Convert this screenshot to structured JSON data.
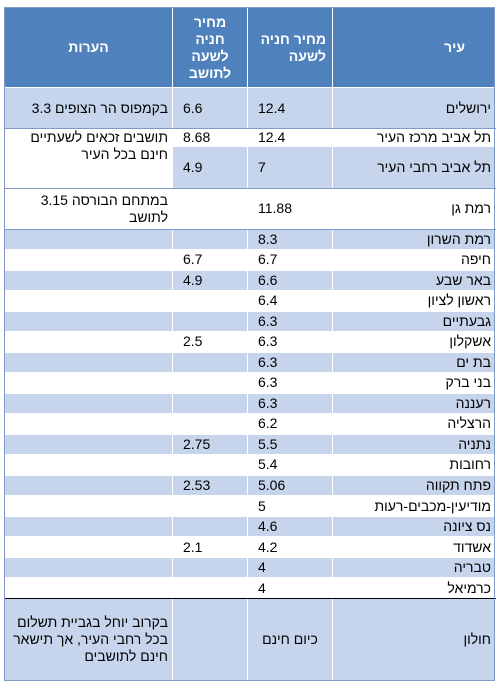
{
  "headers": {
    "city": "עיר",
    "price": "מחיר חניה לשעה",
    "resident": "מחיר חניה לשעה לתושב",
    "notes": "הערות"
  },
  "rows": [
    {
      "city": "ירושלים",
      "price": "12.4",
      "resident": "6.6",
      "notes": "בקמפוס הר הצופים 3.3"
    },
    {
      "city": "תל אביב מרכז העיר",
      "price": "12.4",
      "resident": "8.68",
      "notes": "תושבים זכאים לשעתיים חינם בכל העיר"
    },
    {
      "city": "תל אביב רחבי העיר",
      "price": "7",
      "resident": "4.9",
      "notes": ""
    },
    {
      "city": "רמת גן",
      "price": "11.88",
      "resident": "",
      "notes": "במתחם הבורסה 3.15 לתושב"
    },
    {
      "city": "רמת השרון",
      "price": "8.3",
      "resident": "",
      "notes": ""
    },
    {
      "city": "חיפה",
      "price": "6.7",
      "resident": "6.7",
      "notes": ""
    },
    {
      "city": "באר שבע",
      "price": "6.6",
      "resident": "4.9",
      "notes": ""
    },
    {
      "city": "ראשון לציון",
      "price": "6.4",
      "resident": "",
      "notes": ""
    },
    {
      "city": "גבעתיים",
      "price": "6.3",
      "resident": "",
      "notes": ""
    },
    {
      "city": "אשקלון",
      "price": "6.3",
      "resident": "2.5",
      "notes": ""
    },
    {
      "city": "בת ים",
      "price": "6.3",
      "resident": "",
      "notes": ""
    },
    {
      "city": "בני ברק",
      "price": "6.3",
      "resident": "",
      "notes": ""
    },
    {
      "city": "רעננה",
      "price": "6.3",
      "resident": "",
      "notes": ""
    },
    {
      "city": "הרצליה",
      "price": "6.2",
      "resident": "",
      "notes": ""
    },
    {
      "city": "נתניה",
      "price": "5.5",
      "resident": "2.75",
      "notes": ""
    },
    {
      "city": "רחובות",
      "price": "5.4",
      "resident": "",
      "notes": ""
    },
    {
      "city": "פתח תקווה",
      "price": "5.06",
      "resident": "2.53",
      "notes": ""
    },
    {
      "city": "מודיעין-מכבים-רעות",
      "price": "5",
      "resident": "",
      "notes": ""
    },
    {
      "city": "נס ציונה",
      "price": "4.6",
      "resident": "",
      "notes": ""
    },
    {
      "city": "אשדוד",
      "price": "4.2",
      "resident": "2.1",
      "notes": ""
    },
    {
      "city": "טבריה",
      "price": "4",
      "resident": "",
      "notes": ""
    },
    {
      "city": "כרמיאל",
      "price": "4",
      "resident": "",
      "notes": ""
    },
    {
      "city": "חולון",
      "price": "כיום חינם",
      "resident": "",
      "notes": "בקרוב יוחל בגביית תשלום בכל רחבי העיר, אך תישאר חינם לתושבים"
    }
  ]
}
